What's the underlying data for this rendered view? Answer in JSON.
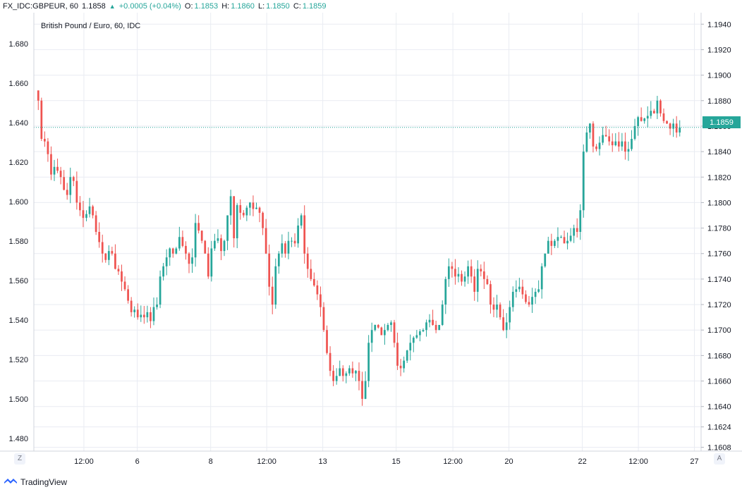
{
  "header": {
    "symbol": "FX_IDC:GBPEUR, 60",
    "last": "1.1858",
    "change": "+0.0005 (+0.04%)",
    "o_label": "O:",
    "o_value": "1.1853",
    "h_label": "H:",
    "h_value": "1.1860",
    "l_label": "L:",
    "l_value": "1.1850",
    "c_label": "C:",
    "c_value": "1.1859"
  },
  "footer": {
    "brand": "TradingView"
  },
  "buttons": {
    "left": "Z",
    "right": "A"
  },
  "colors": {
    "up": "#26a69a",
    "down": "#ef5350",
    "grid": "#e9ecf2",
    "price_line": "#26a69a"
  },
  "chart_data": {
    "type": "candlestick",
    "title": "British Pound / Euro, 60, IDC",
    "left_axis": {
      "ticks": [
        "1.680",
        "1.660",
        "1.640",
        "1.620",
        "1.600",
        "1.580",
        "1.560",
        "1.540",
        "1.520",
        "1.500",
        "1.480"
      ],
      "range": [
        1.4735,
        1.6958
      ]
    },
    "right_axis": {
      "ticks": [
        "1.1940",
        "1.1920",
        "1.1900",
        "1.1880",
        "1.1860",
        "1.1840",
        "1.1820",
        "1.1800",
        "1.1780",
        "1.1760",
        "1.1740",
        "1.1720",
        "1.1700",
        "1.1680",
        "1.1660",
        "1.1640",
        "1.1624",
        "1.1608"
      ],
      "range": [
        1.1605,
        1.1949
      ]
    },
    "x_ticks": [
      "12:00",
      "6",
      "8",
      "12:00",
      "13",
      "15",
      "12:00",
      "20",
      "22",
      "12:00",
      "27"
    ],
    "current_price": "1.1859",
    "current_value": 1.1859,
    "grid": true,
    "path": [
      1.188,
      1.185,
      1.1848,
      1.1838,
      1.1822,
      1.1828,
      1.1825,
      1.182,
      1.181,
      1.1806,
      1.182,
      1.1817,
      1.18,
      1.1794,
      1.1788,
      1.1791,
      1.1797,
      1.179,
      1.1777,
      1.1769,
      1.176,
      1.1755,
      1.1762,
      1.176,
      1.1748,
      1.1746,
      1.1738,
      1.1732,
      1.1723,
      1.1714,
      1.1716,
      1.171,
      1.1712,
      1.171,
      1.1714,
      1.1707,
      1.1718,
      1.172,
      1.1742,
      1.175,
      1.1757,
      1.1764,
      1.176,
      1.1764,
      1.1773,
      1.1766,
      1.176,
      1.1752,
      1.1757,
      1.1784,
      1.1778,
      1.177,
      1.176,
      1.1742,
      1.1764,
      1.177,
      1.1772,
      1.1762,
      1.177,
      1.179,
      1.1805,
      1.1772,
      1.1798,
      1.1792,
      1.179,
      1.1796,
      1.18,
      1.1795,
      1.1796,
      1.1792,
      1.178,
      1.176,
      1.1734,
      1.172,
      1.175,
      1.176,
      1.1768,
      1.176,
      1.177,
      1.177,
      1.1768,
      1.1782,
      1.179,
      1.176,
      1.1748,
      1.174,
      1.1735,
      1.1728,
      1.1718,
      1.17,
      1.1682,
      1.1668,
      1.166,
      1.1664,
      1.167,
      1.1664,
      1.1666,
      1.167,
      1.1666,
      1.1668,
      1.166,
      1.1646,
      1.166,
      1.169,
      1.17,
      1.1704,
      1.1702,
      1.1696,
      1.17,
      1.1704,
      1.1706,
      1.169,
      1.1672,
      1.167,
      1.1676,
      1.1684,
      1.169,
      1.1694,
      1.1696,
      1.1699,
      1.17,
      1.1706,
      1.1708,
      1.1704,
      1.17,
      1.1704,
      1.172,
      1.174,
      1.175,
      1.1748,
      1.1742,
      1.1744,
      1.1738,
      1.1742,
      1.175,
      1.1742,
      1.173,
      1.1748,
      1.1746,
      1.174,
      1.1736,
      1.172,
      1.1716,
      1.172,
      1.171,
      1.17,
      1.1706,
      1.1718,
      1.173,
      1.1732,
      1.1734,
      1.1728,
      1.1722,
      1.172,
      1.1726,
      1.173,
      1.1732,
      1.175,
      1.176,
      1.177,
      1.1766,
      1.177,
      1.1773,
      1.1773,
      1.1768,
      1.177,
      1.1774,
      1.178,
      1.1777,
      1.1794,
      1.184,
      1.1855,
      1.1862,
      1.1844,
      1.1842,
      1.1847,
      1.1853,
      1.1852,
      1.1848,
      1.1845,
      1.1848,
      1.1844,
      1.1848,
      1.184,
      1.1842,
      1.185,
      1.186,
      1.1867,
      1.1864,
      1.1866,
      1.1868,
      1.1872,
      1.187,
      1.188,
      1.187,
      1.1864,
      1.1862,
      1.1858,
      1.1862,
      1.1855,
      1.1859
    ]
  }
}
